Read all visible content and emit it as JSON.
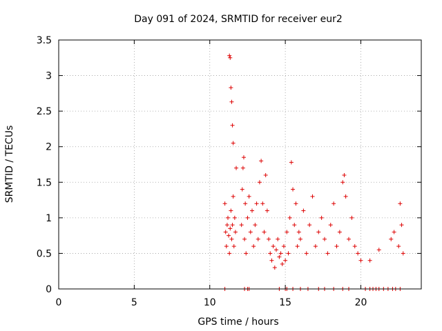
{
  "chart_data": {
    "type": "scatter",
    "title": "Day 091 of 2024, SRMTID for receiver eur2",
    "xlabel": "GPS time / hours",
    "ylabel": "SRMTID / TECUs",
    "xlim": [
      0,
      24
    ],
    "ylim": [
      0,
      3.5
    ],
    "xticks": [
      0,
      5,
      10,
      15,
      20
    ],
    "xtick_labels": [
      "0",
      "5",
      "10",
      "15",
      "20"
    ],
    "yticks": [
      0,
      0.5,
      1,
      1.5,
      2,
      2.5,
      3,
      3.5
    ],
    "ytick_labels": [
      "0",
      "0.5",
      "1",
      "1.5",
      "2",
      "2.5",
      "3",
      "3.5"
    ],
    "grid": true,
    "marker": "+",
    "color": "#dd0000",
    "series": [
      {
        "name": "eur2",
        "x": [
          11.0,
          11.05,
          11.1,
          11.15,
          11.2,
          11.25,
          11.3,
          11.35,
          11.4,
          11.45,
          11.5,
          11.55,
          11.6,
          11.65,
          11.7,
          11.75,
          11.3,
          11.35,
          11.4,
          11.45,
          11.5,
          11.55,
          12.1,
          12.15,
          12.2,
          12.25,
          12.3,
          12.35,
          12.4,
          12.5,
          12.6,
          12.7,
          12.8,
          12.9,
          13.0,
          13.1,
          13.2,
          13.3,
          13.4,
          13.5,
          13.6,
          13.7,
          13.8,
          13.9,
          14.0,
          14.1,
          14.2,
          14.3,
          14.4,
          14.5,
          14.6,
          14.7,
          14.8,
          14.9,
          15.0,
          15.1,
          15.2,
          15.3,
          15.4,
          15.5,
          15.6,
          15.7,
          15.8,
          15.9,
          16.0,
          16.2,
          16.4,
          16.6,
          16.8,
          17.0,
          17.2,
          17.4,
          17.6,
          17.8,
          18.0,
          18.2,
          18.4,
          18.6,
          18.8,
          18.9,
          19.0,
          19.2,
          19.4,
          19.6,
          19.8,
          20.0,
          20.6,
          21.2,
          22.0,
          22.2,
          22.5,
          22.6,
          22.7,
          22.8
        ],
        "y": [
          1.2,
          0.8,
          0.6,
          0.9,
          1.0,
          0.75,
          0.5,
          0.85,
          1.1,
          0.7,
          0.9,
          1.3,
          0.6,
          1.0,
          0.8,
          1.7,
          3.28,
          3.25,
          2.83,
          2.63,
          2.3,
          2.05,
          0.9,
          1.4,
          1.7,
          1.85,
          0.7,
          1.2,
          0.5,
          1.0,
          1.3,
          0.8,
          1.1,
          0.6,
          0.9,
          1.2,
          0.7,
          1.5,
          1.8,
          1.2,
          0.8,
          1.6,
          1.1,
          0.7,
          0.5,
          0.4,
          0.6,
          0.3,
          0.55,
          0.7,
          0.45,
          0.5,
          0.35,
          0.6,
          0.4,
          0.8,
          0.5,
          1.0,
          1.78,
          1.4,
          0.9,
          1.2,
          0.6,
          0.8,
          0.7,
          1.1,
          0.5,
          0.9,
          1.3,
          0.6,
          0.8,
          1.0,
          0.7,
          0.5,
          0.9,
          1.2,
          0.6,
          0.8,
          1.5,
          1.6,
          1.3,
          0.7,
          1.0,
          0.6,
          0.5,
          0.4,
          0.4,
          0.55,
          0.7,
          0.8,
          0.6,
          1.2,
          0.9,
          0.5
        ]
      }
    ],
    "zero_markers_x": [
      11.0,
      12.3,
      12.5,
      12.6,
      14.6,
      15.0,
      15.1,
      15.5,
      16.0,
      16.5,
      17.2,
      17.6,
      18.2,
      18.8,
      19.2,
      20.3,
      20.6,
      20.8,
      21.0,
      21.2,
      21.5,
      21.8,
      22.1,
      22.3,
      22.6
    ]
  }
}
